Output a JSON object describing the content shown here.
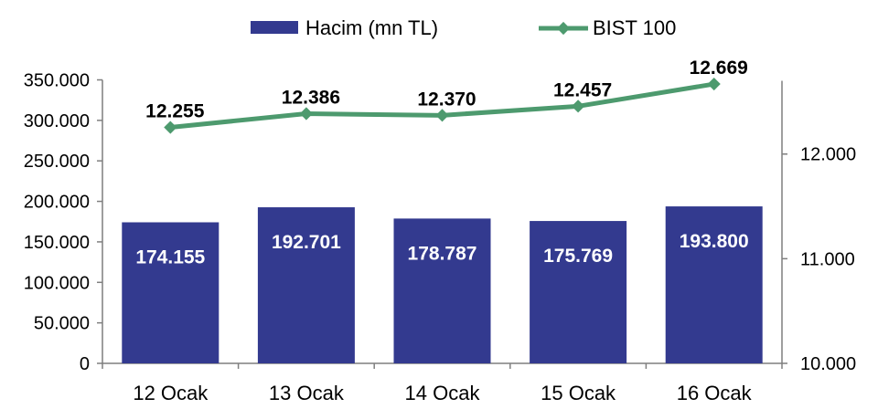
{
  "chart_data": {
    "type": "bar",
    "categories": [
      "12 Ocak",
      "13 Ocak",
      "14 Ocak",
      "15 Ocak",
      "16 Ocak"
    ],
    "series": [
      {
        "name": "Hacim (mn TL)",
        "type": "bar",
        "axis": "left",
        "values": [
          174155,
          192701,
          178787,
          175769,
          193800
        ],
        "labels": [
          "174.155",
          "192.701",
          "178.787",
          "175.769",
          "193.800"
        ]
      },
      {
        "name": "BIST 100",
        "type": "line",
        "axis": "right",
        "values": [
          12255,
          12386,
          12370,
          12457,
          12669
        ],
        "labels": [
          "12.255",
          "12.386",
          "12.370",
          "12.457",
          "12.669"
        ]
      }
    ],
    "y_left": {
      "ylim": [
        0,
        350000
      ],
      "ticks": [
        0,
        50000,
        100000,
        150000,
        200000,
        250000,
        300000,
        350000
      ],
      "tick_labels": [
        "0",
        "50.000",
        "100.000",
        "150.000",
        "200.000",
        "250.000",
        "300.000",
        "350.000"
      ]
    },
    "y_right": {
      "ylim": [
        10000,
        12700
      ],
      "ticks": [
        10000,
        11000,
        12000
      ],
      "tick_labels": [
        "10.000",
        "11.000",
        "12.000"
      ]
    },
    "legend": {
      "placement": "top-center",
      "items": [
        {
          "label": "Hacim (mn TL)",
          "kind": "bar"
        },
        {
          "label": "BIST 100",
          "kind": "line"
        }
      ]
    },
    "grid": false,
    "colors": {
      "bar": "#333a8f",
      "line": "#4d9a6e",
      "axis": "#7f7f7f"
    }
  }
}
